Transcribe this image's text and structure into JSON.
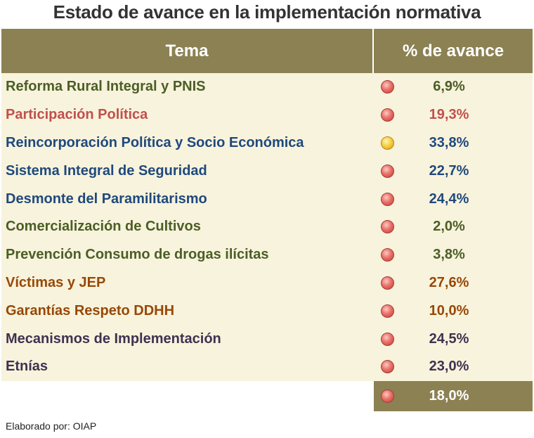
{
  "title": "Estado de avance en la implementación normativa",
  "header": {
    "tema": "Tema",
    "avance": "% de avance"
  },
  "rows": [
    {
      "tema": "Reforma Rural Integral y PNIS",
      "avance": "6,9%",
      "status": "red",
      "color": "#4b5e26"
    },
    {
      "tema": "Participación Política",
      "avance": "19,3%",
      "status": "red",
      "color": "#c0504d"
    },
    {
      "tema": "Reincorporación Política y Socio Económica",
      "avance": "33,8%",
      "status": "yellow",
      "color": "#1f497d"
    },
    {
      "tema": "Sistema Integral de Seguridad",
      "avance": "22,7%",
      "status": "red",
      "color": "#1f497d"
    },
    {
      "tema": "Desmonte del Paramilitarismo",
      "avance": "24,4%",
      "status": "red",
      "color": "#1f497d"
    },
    {
      "tema": "Comercialización de Cultivos",
      "avance": "2,0%",
      "status": "red",
      "color": "#4b5e26"
    },
    {
      "tema": "Prevención Consumo de drogas ilícitas",
      "avance": "3,8%",
      "status": "red",
      "color": "#4b5e26"
    },
    {
      "tema": "Víctimas y JEP",
      "avance": "27,6%",
      "status": "red",
      "color": "#984807"
    },
    {
      "tema": "Garantías Respeto DDHH",
      "avance": "10,0%",
      "status": "red",
      "color": "#984807"
    },
    {
      "tema": "Mecanismos de Implementación",
      "avance": "24,5%",
      "status": "red",
      "color": "#3f3151"
    },
    {
      "tema": "Etnías",
      "avance": "23,0%",
      "status": "red",
      "color": "#3f3151"
    }
  ],
  "total": {
    "avance": "18,0%",
    "status": "red"
  },
  "footer": "Elaborado por: OIAP"
}
